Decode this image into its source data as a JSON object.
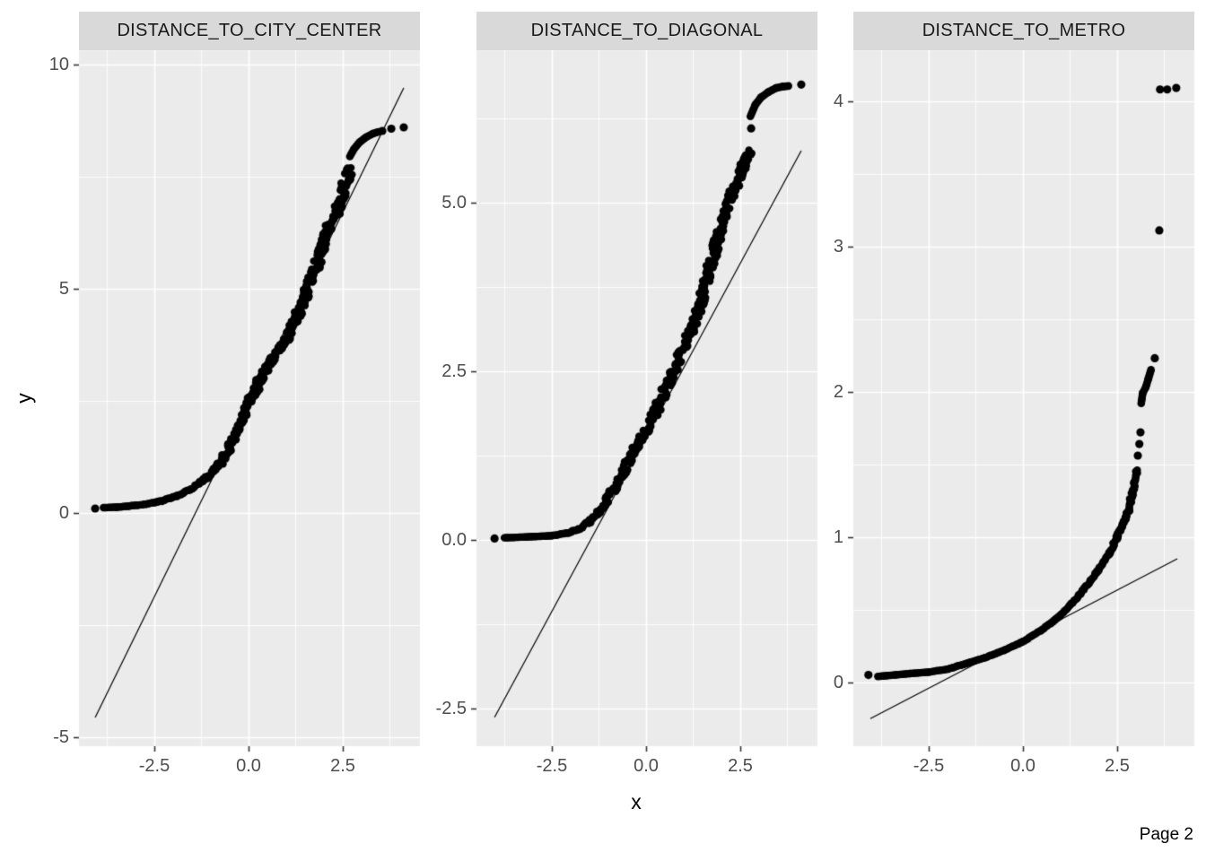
{
  "page": {
    "label": "Page 2"
  },
  "chart_data": {
    "type": "scatter",
    "subtype": "qq_plot_faceted",
    "x_title": "x",
    "y_title": "y",
    "grid": true,
    "legend": "none",
    "style": {
      "panel_bg": "#EBEBEB",
      "grid_color": "#FFFFFF",
      "strip_bg": "#D9D9D9",
      "point_color": "#000000",
      "line_color": "#000000",
      "tick_mark_color": "#333333",
      "tick_label_color": "#4D4D4D"
    },
    "facets": [
      {
        "title": "DISTANCE_TO_CITY_CENTER",
        "xlim": [
          -4.5,
          4.55
        ],
        "ylim": [
          -5.2,
          10.32
        ],
        "x_ticks": [
          {
            "v": -2.5,
            "label": "-2.5"
          },
          {
            "v": 0,
            "label": "0.0"
          },
          {
            "v": 2.5,
            "label": "2.5"
          }
        ],
        "y_ticks": [
          {
            "v": -5,
            "label": "-5"
          },
          {
            "v": 0,
            "label": "0"
          },
          {
            "v": 5,
            "label": "5"
          },
          {
            "v": 10,
            "label": "10"
          }
        ],
        "x_minor": [
          -3.75,
          -1.25,
          1.25,
          3.75
        ],
        "y_minor": [
          -2.5,
          2.5,
          7.5
        ],
        "qq_line": {
          "x1": -4.07,
          "y1": -4.56,
          "x2": 4.12,
          "y2": 9.48
        },
        "band": [
          [
            -3.85,
            0.12
          ],
          [
            -3.5,
            0.13
          ],
          [
            -3.1,
            0.16
          ],
          [
            -2.7,
            0.2
          ],
          [
            -2.3,
            0.27
          ],
          [
            -1.9,
            0.38
          ],
          [
            -1.5,
            0.55
          ],
          [
            -1.1,
            0.8
          ],
          [
            -0.8,
            1.05
          ],
          [
            -0.5,
            1.45
          ],
          [
            -0.2,
            1.95
          ],
          [
            0.05,
            2.5
          ],
          [
            0.35,
            3.05
          ],
          [
            0.65,
            3.45
          ],
          [
            0.95,
            3.8
          ],
          [
            1.25,
            4.3
          ],
          [
            1.55,
            4.95
          ],
          [
            1.8,
            5.5
          ],
          [
            2.0,
            6.05
          ],
          [
            2.15,
            6.45
          ],
          [
            2.3,
            6.6
          ],
          [
            2.45,
            7.0
          ],
          [
            2.6,
            7.45
          ],
          [
            2.71,
            7.7
          ]
        ],
        "band2": [
          [
            2.69,
            7.95
          ],
          [
            2.8,
            8.12
          ],
          [
            2.95,
            8.27
          ],
          [
            3.12,
            8.38
          ],
          [
            3.3,
            8.46
          ],
          [
            3.45,
            8.5
          ]
        ],
        "dots": [
          [
            -4.07,
            0.1
          ],
          [
            3.55,
            8.52
          ],
          [
            3.79,
            8.57
          ],
          [
            4.12,
            8.6
          ]
        ]
      },
      {
        "title": "DISTANCE_TO_DIAGONAL",
        "xlim": [
          -4.5,
          4.55
        ],
        "ylim": [
          -3.06,
          7.26
        ],
        "x_ticks": [
          {
            "v": -2.5,
            "label": "-2.5"
          },
          {
            "v": 0,
            "label": "0.0"
          },
          {
            "v": 2.5,
            "label": "2.5"
          }
        ],
        "y_ticks": [
          {
            "v": -2.5,
            "label": "-2.5"
          },
          {
            "v": 0,
            "label": "0.0"
          },
          {
            "v": 2.5,
            "label": "2.5"
          },
          {
            "v": 5,
            "label": "5.0"
          }
        ],
        "x_minor": [
          -3.75,
          -1.25,
          1.25,
          3.75
        ],
        "y_minor": [
          -1.25,
          1.25,
          3.75,
          6.25
        ],
        "qq_line": {
          "x1": -4.02,
          "y1": -2.63,
          "x2": 4.12,
          "y2": 5.77
        },
        "band": [
          [
            -3.76,
            0.03
          ],
          [
            -3.3,
            0.04
          ],
          [
            -2.9,
            0.05
          ],
          [
            -2.5,
            0.06
          ],
          [
            -2.1,
            0.1
          ],
          [
            -1.8,
            0.16
          ],
          [
            -1.5,
            0.27
          ],
          [
            -1.2,
            0.45
          ],
          [
            -0.9,
            0.7
          ],
          [
            -0.6,
            1.02
          ],
          [
            -0.3,
            1.35
          ],
          [
            0,
            1.62
          ],
          [
            0.3,
            1.95
          ],
          [
            0.6,
            2.35
          ],
          [
            0.9,
            2.72
          ],
          [
            1.2,
            3.1
          ],
          [
            1.45,
            3.5
          ],
          [
            1.7,
            4.05
          ],
          [
            1.9,
            4.45
          ],
          [
            2.1,
            4.8
          ],
          [
            2.3,
            5.15
          ],
          [
            2.5,
            5.45
          ],
          [
            2.65,
            5.62
          ],
          [
            2.79,
            5.76
          ]
        ],
        "band2": [
          [
            2.77,
            6.28
          ],
          [
            2.9,
            6.45
          ],
          [
            3.05,
            6.56
          ],
          [
            3.25,
            6.64
          ],
          [
            3.45,
            6.7
          ],
          [
            3.62,
            6.72
          ],
          [
            3.78,
            6.73
          ]
        ],
        "dots": [
          [
            -4.02,
            0.02
          ],
          [
            2.79,
            6.1
          ],
          [
            4.12,
            6.75
          ]
        ]
      },
      {
        "title": "DISTANCE_TO_METRO",
        "xlim": [
          -4.5,
          4.55
        ],
        "ylim": [
          -0.44,
          4.35
        ],
        "x_ticks": [
          {
            "v": -2.5,
            "label": "-2.5"
          },
          {
            "v": 0,
            "label": "0.0"
          },
          {
            "v": 2.5,
            "label": "2.5"
          }
        ],
        "y_ticks": [
          {
            "v": 0,
            "label": "0"
          },
          {
            "v": 1,
            "label": "1"
          },
          {
            "v": 2,
            "label": "2"
          },
          {
            "v": 3,
            "label": "3"
          },
          {
            "v": 4,
            "label": "4"
          }
        ],
        "x_minor": [
          -3.75,
          -1.25,
          1.25,
          3.75
        ],
        "y_minor": [
          0.5,
          1.5,
          2.5,
          3.5
        ],
        "qq_line": {
          "x1": -4.05,
          "y1": -0.25,
          "x2": 4.1,
          "y2": 0.85
        },
        "band": [
          [
            -3.85,
            0.04
          ],
          [
            -3.4,
            0.05
          ],
          [
            -3.0,
            0.06
          ],
          [
            -2.5,
            0.07
          ],
          [
            -2.0,
            0.09
          ],
          [
            -1.5,
            0.13
          ],
          [
            -1.0,
            0.17
          ],
          [
            -0.5,
            0.22
          ],
          [
            0,
            0.28
          ],
          [
            0.5,
            0.36
          ],
          [
            1.0,
            0.46
          ],
          [
            1.5,
            0.6
          ],
          [
            2.0,
            0.77
          ],
          [
            2.3,
            0.89
          ],
          [
            2.5,
            1.0
          ],
          [
            2.65,
            1.08
          ],
          [
            2.8,
            1.18
          ],
          [
            2.9,
            1.3
          ],
          [
            2.98,
            1.38
          ],
          [
            3.03,
            1.46
          ]
        ],
        "band2": [
          [
            3.14,
            1.92
          ],
          [
            3.18,
            1.99
          ],
          [
            3.26,
            2.03
          ],
          [
            3.33,
            2.09
          ],
          [
            3.4,
            2.15
          ]
        ],
        "dots": [
          [
            -4.1,
            0.05
          ],
          [
            3.05,
            1.56
          ],
          [
            3.09,
            1.64
          ],
          [
            3.12,
            1.72
          ],
          [
            3.5,
            2.23
          ],
          [
            3.62,
            3.11
          ],
          [
            3.64,
            4.08
          ],
          [
            3.83,
            4.08
          ],
          [
            4.07,
            4.09
          ]
        ]
      }
    ]
  }
}
